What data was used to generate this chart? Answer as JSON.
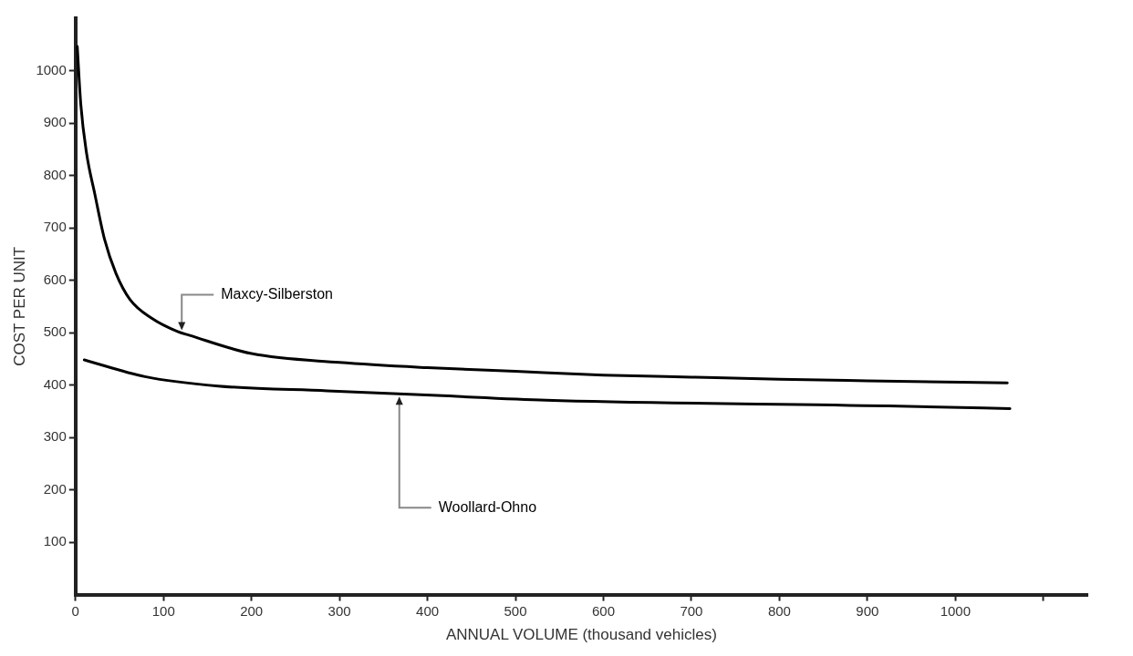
{
  "chart_data": {
    "type": "line",
    "xlabel": "ANNUAL VOLUME (thousand vehicles)",
    "ylabel": "COST PER UNIT",
    "xlim": [
      0,
      1150
    ],
    "ylim": [
      0,
      1100
    ],
    "xticks": [
      0,
      100,
      200,
      300,
      400,
      500,
      600,
      700,
      800,
      900,
      1000,
      {
        "value": 1100,
        "label": null
      }
    ],
    "yticks": [
      100,
      200,
      300,
      400,
      500,
      600,
      700,
      800,
      900,
      1000
    ],
    "grid": false,
    "legend": false,
    "marker": "none",
    "line_style": "solid",
    "series": [
      {
        "name": "Maxcy-Silberston",
        "color": "#000000",
        "x": [
          2,
          6,
          12.5,
          22,
          33,
          46,
          62,
          87,
          116,
          129,
          200,
          300,
          400,
          500,
          600,
          700,
          800,
          900,
          1059
        ],
        "values": [
          1046,
          936,
          843,
          764,
          678,
          613,
          563,
          527,
          502,
          495,
          460,
          443,
          433,
          426,
          419,
          415,
          411,
          408,
          404
        ]
      },
      {
        "name": "Woollard-Ohno",
        "color": "#000000",
        "x": [
          10,
          79,
          162,
          286,
          411,
          535,
          924,
          1062
        ],
        "values": [
          448,
          416,
          398,
          389,
          380,
          371,
          360,
          355
        ]
      }
    ]
  }
}
